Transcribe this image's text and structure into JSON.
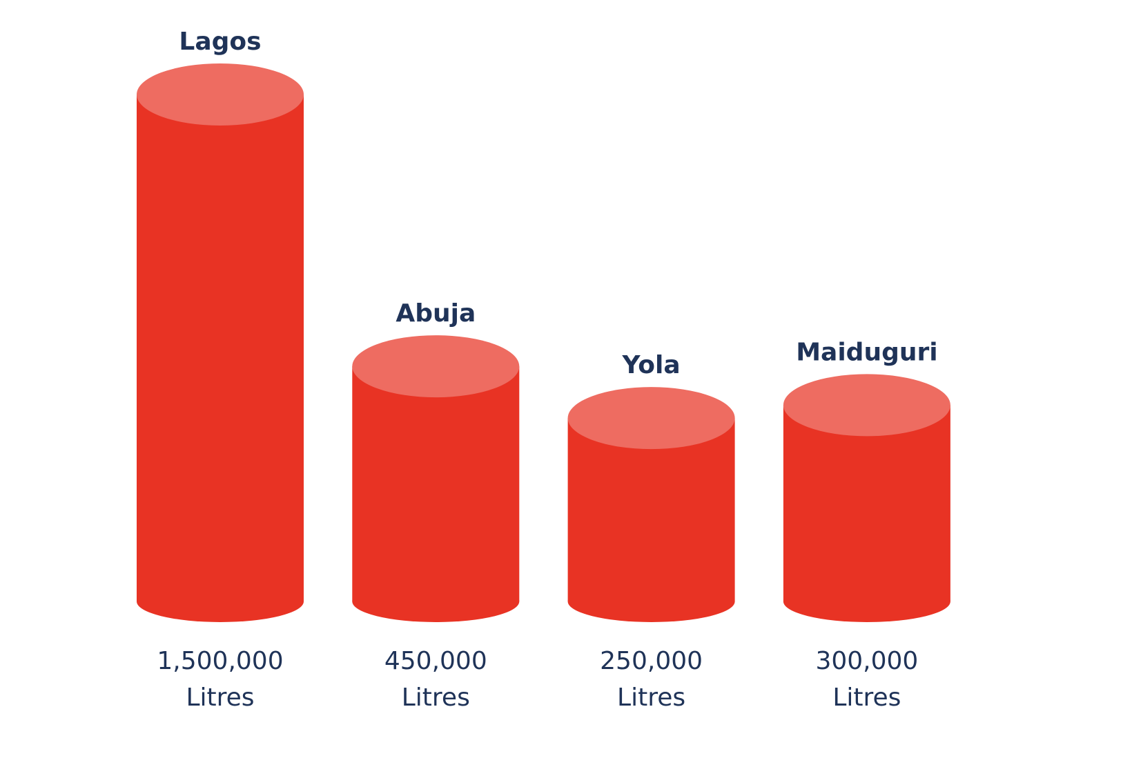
{
  "chart_data": {
    "type": "cylinder",
    "categories": [
      "Lagos",
      "Abuja",
      "Yola",
      "Maiduguri"
    ],
    "values": [
      1500000,
      450000,
      250000,
      300000
    ],
    "value_labels": [
      "1,500,000 Litres",
      "450,000 Litres",
      "250,000 Litres",
      "300,000 Litres"
    ],
    "color": "#e83324"
  }
}
